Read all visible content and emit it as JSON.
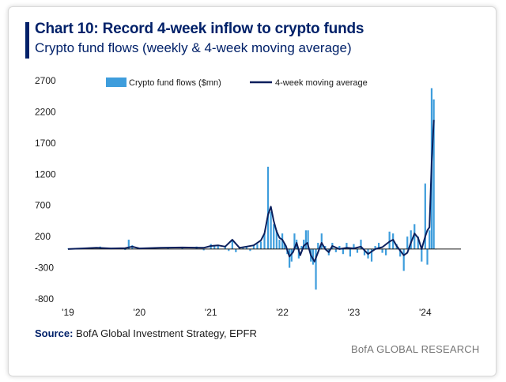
{
  "title": "Chart 10: Record 4-week inflow to crypto funds",
  "subtitle": "Crypto fund flows (weekly & 4-week moving average)",
  "source_label": "Source:",
  "source_text": "BofA Global Investment Strategy, EPFR",
  "brand": "BofA GLOBAL RESEARCH",
  "colors": {
    "bar": "#3e9ddc",
    "line": "#0b1f5c",
    "title": "#012169"
  },
  "chart_data": {
    "type": "bar+line",
    "ylim": [
      -800,
      2700
    ],
    "yticks": [
      2700,
      2200,
      1700,
      1200,
      700,
      200,
      -300,
      -800
    ],
    "xlim": [
      2019.0,
      2024.5
    ],
    "xticks": [
      {
        "label": "'19",
        "value": 2019.0
      },
      {
        "label": "'20",
        "value": 2020.0
      },
      {
        "label": "'21",
        "value": 2021.0
      },
      {
        "label": "'22",
        "value": 2022.0
      },
      {
        "label": "'23",
        "value": 2023.0
      },
      {
        "label": "'24",
        "value": 2024.0
      }
    ],
    "legend_position": "top",
    "grid": false,
    "series": [
      {
        "name": "Crypto fund flows ($mn)",
        "kind": "bar",
        "points": [
          [
            2019.0,
            5
          ],
          [
            2019.15,
            15
          ],
          [
            2019.3,
            25
          ],
          [
            2019.45,
            40
          ],
          [
            2019.55,
            10
          ],
          [
            2019.7,
            20
          ],
          [
            2019.8,
            -15
          ],
          [
            2019.85,
            150
          ],
          [
            2019.9,
            60
          ],
          [
            2020.0,
            20
          ],
          [
            2020.2,
            15
          ],
          [
            2020.4,
            20
          ],
          [
            2020.6,
            30
          ],
          [
            2020.8,
            40
          ],
          [
            2020.9,
            -20
          ],
          [
            2021.0,
            80
          ],
          [
            2021.05,
            55
          ],
          [
            2021.1,
            60
          ],
          [
            2021.2,
            50
          ],
          [
            2021.25,
            -30
          ],
          [
            2021.3,
            150
          ],
          [
            2021.35,
            -50
          ],
          [
            2021.4,
            20
          ],
          [
            2021.45,
            30
          ],
          [
            2021.5,
            50
          ],
          [
            2021.55,
            -30
          ],
          [
            2021.6,
            70
          ],
          [
            2021.65,
            80
          ],
          [
            2021.7,
            120
          ],
          [
            2021.75,
            250
          ],
          [
            2021.8,
            1320
          ],
          [
            2021.84,
            600
          ],
          [
            2021.88,
            400
          ],
          [
            2021.92,
            300
          ],
          [
            2021.96,
            150
          ],
          [
            2022.0,
            250
          ],
          [
            2022.03,
            100
          ],
          [
            2022.07,
            -80
          ],
          [
            2022.1,
            -300
          ],
          [
            2022.13,
            -200
          ],
          [
            2022.17,
            250
          ],
          [
            2022.2,
            150
          ],
          [
            2022.23,
            -150
          ],
          [
            2022.27,
            50
          ],
          [
            2022.3,
            150
          ],
          [
            2022.33,
            300
          ],
          [
            2022.36,
            300
          ],
          [
            2022.4,
            -200
          ],
          [
            2022.43,
            -250
          ],
          [
            2022.47,
            -650
          ],
          [
            2022.5,
            100
          ],
          [
            2022.55,
            250
          ],
          [
            2022.6,
            50
          ],
          [
            2022.65,
            -100
          ],
          [
            2022.7,
            100
          ],
          [
            2022.75,
            -50
          ],
          [
            2022.8,
            50
          ],
          [
            2022.85,
            -80
          ],
          [
            2022.9,
            100
          ],
          [
            2022.95,
            -120
          ],
          [
            2023.0,
            80
          ],
          [
            2023.05,
            -60
          ],
          [
            2023.1,
            150
          ],
          [
            2023.15,
            -100
          ],
          [
            2023.2,
            -150
          ],
          [
            2023.25,
            -200
          ],
          [
            2023.3,
            50
          ],
          [
            2023.35,
            100
          ],
          [
            2023.4,
            -60
          ],
          [
            2023.45,
            -100
          ],
          [
            2023.5,
            280
          ],
          [
            2023.55,
            250
          ],
          [
            2023.6,
            80
          ],
          [
            2023.65,
            -120
          ],
          [
            2023.7,
            -350
          ],
          [
            2023.75,
            200
          ],
          [
            2023.8,
            300
          ],
          [
            2023.85,
            400
          ],
          [
            2023.9,
            200
          ],
          [
            2023.95,
            -200
          ],
          [
            2024.0,
            1050
          ],
          [
            2024.03,
            -250
          ],
          [
            2024.06,
            300
          ],
          [
            2024.09,
            2580
          ],
          [
            2024.12,
            2400
          ],
          [
            2024.15,
            0
          ]
        ]
      },
      {
        "name": "4-week moving average",
        "kind": "line",
        "points": [
          [
            2019.0,
            0
          ],
          [
            2019.2,
            10
          ],
          [
            2019.4,
            20
          ],
          [
            2019.6,
            10
          ],
          [
            2019.8,
            15
          ],
          [
            2019.9,
            40
          ],
          [
            2020.0,
            10
          ],
          [
            2020.3,
            20
          ],
          [
            2020.6,
            25
          ],
          [
            2020.9,
            20
          ],
          [
            2021.0,
            50
          ],
          [
            2021.1,
            60
          ],
          [
            2021.2,
            40
          ],
          [
            2021.3,
            150
          ],
          [
            2021.4,
            20
          ],
          [
            2021.5,
            40
          ],
          [
            2021.6,
            60
          ],
          [
            2021.7,
            140
          ],
          [
            2021.75,
            250
          ],
          [
            2021.8,
            550
          ],
          [
            2021.84,
            680
          ],
          [
            2021.88,
            450
          ],
          [
            2021.92,
            280
          ],
          [
            2021.96,
            180
          ],
          [
            2022.0,
            150
          ],
          [
            2022.05,
            50
          ],
          [
            2022.1,
            -120
          ],
          [
            2022.15,
            -50
          ],
          [
            2022.2,
            100
          ],
          [
            2022.25,
            -100
          ],
          [
            2022.3,
            50
          ],
          [
            2022.35,
            100
          ],
          [
            2022.4,
            -100
          ],
          [
            2022.45,
            -200
          ],
          [
            2022.5,
            -50
          ],
          [
            2022.55,
            100
          ],
          [
            2022.6,
            0
          ],
          [
            2022.65,
            -50
          ],
          [
            2022.7,
            50
          ],
          [
            2022.8,
            0
          ],
          [
            2022.9,
            20
          ],
          [
            2023.0,
            10
          ],
          [
            2023.1,
            40
          ],
          [
            2023.2,
            -80
          ],
          [
            2023.3,
            0
          ],
          [
            2023.4,
            30
          ],
          [
            2023.5,
            120
          ],
          [
            2023.55,
            150
          ],
          [
            2023.6,
            50
          ],
          [
            2023.7,
            -100
          ],
          [
            2023.75,
            -60
          ],
          [
            2023.8,
            100
          ],
          [
            2023.85,
            250
          ],
          [
            2023.9,
            180
          ],
          [
            2023.95,
            0
          ],
          [
            2024.0,
            200
          ],
          [
            2024.03,
            300
          ],
          [
            2024.06,
            350
          ],
          [
            2024.09,
            1400
          ],
          [
            2024.12,
            2070
          ]
        ]
      }
    ]
  }
}
